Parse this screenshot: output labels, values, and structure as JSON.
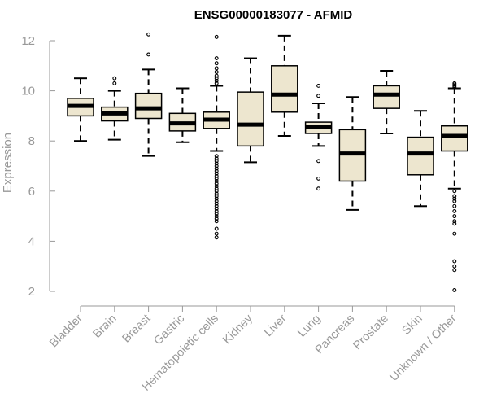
{
  "chart_data": {
    "type": "box",
    "title": "ENSG00000183077 - AFMID",
    "xlabel": "",
    "ylabel": "Expression",
    "ylim": [
      2,
      12
    ],
    "yticks": [
      2,
      4,
      6,
      8,
      10,
      12
    ],
    "grid": false,
    "legend": "none",
    "colors": {
      "box_fill": "#ede6cf",
      "box_stroke": "#000000",
      "axis": "#999999",
      "title": "#000000"
    },
    "categories": [
      "Bladder",
      "Brain",
      "Breast",
      "Gastric",
      "Hematopoietic cells",
      "Kidney",
      "Liver",
      "Lung",
      "Pancreas",
      "Prostate",
      "Skin",
      "Unknown / Other"
    ],
    "boxes": [
      {
        "category": "Bladder",
        "whisker_low": 8.0,
        "q1": 9.0,
        "median": 9.4,
        "q3": 9.7,
        "whisker_high": 10.5,
        "outliers": []
      },
      {
        "category": "Brain",
        "whisker_low": 8.05,
        "q1": 8.8,
        "median": 9.1,
        "q3": 9.35,
        "whisker_high": 10.0,
        "outliers": [
          10.3,
          10.5
        ]
      },
      {
        "category": "Breast",
        "whisker_low": 7.4,
        "q1": 8.9,
        "median": 9.3,
        "q3": 9.9,
        "whisker_high": 10.85,
        "outliers": [
          11.45,
          12.25
        ]
      },
      {
        "category": "Gastric",
        "whisker_low": 7.95,
        "q1": 8.4,
        "median": 8.7,
        "q3": 9.1,
        "whisker_high": 10.1,
        "outliers": []
      },
      {
        "category": "Hematopoietic cells",
        "whisker_low": 7.6,
        "q1": 8.5,
        "median": 8.85,
        "q3": 9.15,
        "whisker_high": 10.2,
        "outliers": [
          12.15,
          11.3,
          11.1,
          10.9,
          10.75,
          10.6,
          10.5,
          10.4,
          10.3,
          7.4,
          7.3,
          7.2,
          7.1,
          7.0,
          6.9,
          6.8,
          6.7,
          6.6,
          6.5,
          6.4,
          6.3,
          6.2,
          6.1,
          6.0,
          5.9,
          5.8,
          5.7,
          5.6,
          5.5,
          5.4,
          5.3,
          5.2,
          5.1,
          5.0,
          4.9,
          4.8,
          4.5,
          4.3,
          4.15
        ]
      },
      {
        "category": "Kidney",
        "whisker_low": 7.15,
        "q1": 7.8,
        "median": 8.65,
        "q3": 9.95,
        "whisker_high": 11.3,
        "outliers": []
      },
      {
        "category": "Liver",
        "whisker_low": 8.2,
        "q1": 9.15,
        "median": 9.85,
        "q3": 11.0,
        "whisker_high": 12.2,
        "outliers": []
      },
      {
        "category": "Lung",
        "whisker_low": 7.8,
        "q1": 8.3,
        "median": 8.55,
        "q3": 8.75,
        "whisker_high": 9.5,
        "outliers": [
          10.2,
          9.8,
          7.2,
          6.5,
          6.1
        ]
      },
      {
        "category": "Pancreas",
        "whisker_low": 5.25,
        "q1": 6.4,
        "median": 7.5,
        "q3": 8.45,
        "whisker_high": 9.75,
        "outliers": []
      },
      {
        "category": "Prostate",
        "whisker_low": 8.3,
        "q1": 9.3,
        "median": 9.85,
        "q3": 10.2,
        "whisker_high": 10.8,
        "outliers": []
      },
      {
        "category": "Skin",
        "whisker_low": 5.4,
        "q1": 6.65,
        "median": 7.5,
        "q3": 8.15,
        "whisker_high": 9.2,
        "outliers": []
      },
      {
        "category": "Unknown / Other",
        "whisker_low": 6.1,
        "q1": 7.6,
        "median": 8.2,
        "q3": 8.6,
        "whisker_high": 10.1,
        "outliers": [
          10.3,
          10.25,
          10.2,
          10.15,
          6.0,
          5.8,
          5.7,
          5.6,
          5.4,
          5.2,
          5.0,
          4.8,
          4.7,
          4.3,
          3.2,
          3.0,
          2.85,
          2.05
        ]
      }
    ]
  }
}
